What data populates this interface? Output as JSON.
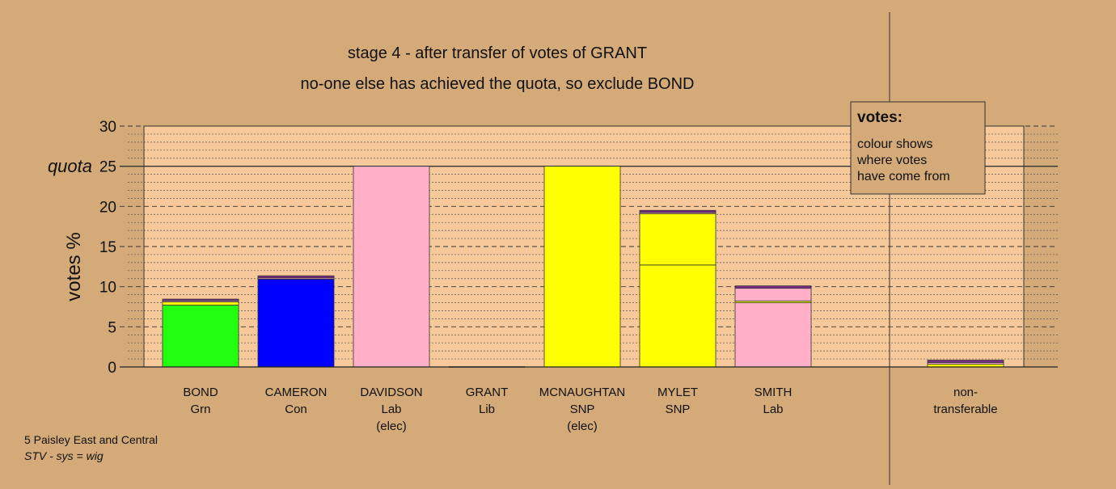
{
  "chart_data": {
    "type": "bar",
    "stacked": true,
    "title": "stage 4 - after transfer of votes of GRANT",
    "subtitle": "no-one else has achieved the quota, so exclude BOND",
    "ylabel": "votes %",
    "ylim": [
      0,
      30
    ],
    "yticks": [
      0,
      5,
      10,
      15,
      20,
      25,
      30
    ],
    "quota": 25,
    "quota_label": "quota",
    "grid": true,
    "candidates": [
      {
        "name": "BOND",
        "party": "Grn",
        "note": "",
        "segments": [
          {
            "value": 7.7,
            "color": "#22ff11"
          },
          {
            "value": 0.4,
            "color": "#ffff00"
          },
          {
            "value": 0.15,
            "color": "#ffb0c8"
          },
          {
            "value": 0.2,
            "color": "#7a2b8a"
          }
        ]
      },
      {
        "name": "CAMERON",
        "party": "Con",
        "note": "",
        "segments": [
          {
            "value": 10.95,
            "color": "#0000ff"
          },
          {
            "value": 0.15,
            "color": "#ffb0c8"
          },
          {
            "value": 0.25,
            "color": "#7a2b8a"
          }
        ]
      },
      {
        "name": "DAVIDSON",
        "party": "Lab",
        "note": "(elec)",
        "segments": [
          {
            "value": 25,
            "color": "#ffb0c8"
          }
        ]
      },
      {
        "name": "GRANT",
        "party": "Lib",
        "note": "",
        "segments": []
      },
      {
        "name": "MCNAUGHTAN",
        "party": "SNP",
        "note": "(elec)",
        "segments": [
          {
            "value": 25,
            "color": "#ffff00"
          }
        ]
      },
      {
        "name": "MYLET",
        "party": "SNP",
        "note": "",
        "segments": [
          {
            "value": 12.7,
            "color": "#ffff00"
          },
          {
            "value": 6.4,
            "color": "#ffff00"
          },
          {
            "value": 0.15,
            "color": "#ffb0c8"
          },
          {
            "value": 0.25,
            "color": "#7a2b8a"
          }
        ]
      },
      {
        "name": "SMITH",
        "party": "Lab",
        "note": "",
        "segments": [
          {
            "value": 8.0,
            "color": "#ffb0c8"
          },
          {
            "value": 0.2,
            "color": "#ffff00"
          },
          {
            "value": 1.6,
            "color": "#ffb0c8"
          },
          {
            "value": 0.3,
            "color": "#7a2b8a"
          }
        ]
      }
    ],
    "non_transferable": {
      "label_1": "non-",
      "label_2": "transferable",
      "segments": [
        {
          "value": 0.35,
          "color": "#ffff00"
        },
        {
          "value": 0.2,
          "color": "#ffb0c8"
        },
        {
          "value": 0.3,
          "color": "#7a2b8a"
        }
      ]
    },
    "legend": {
      "heading": "votes:",
      "lines": [
        "colour shows",
        "where votes",
        "have come from"
      ],
      "placement": "top-right"
    }
  },
  "footer": {
    "line1": "5 Paisley East and Central",
    "line2": "STV - sys = wig"
  },
  "colors": {
    "background": "#d4aa78",
    "plot_area": "#f7c89a"
  }
}
